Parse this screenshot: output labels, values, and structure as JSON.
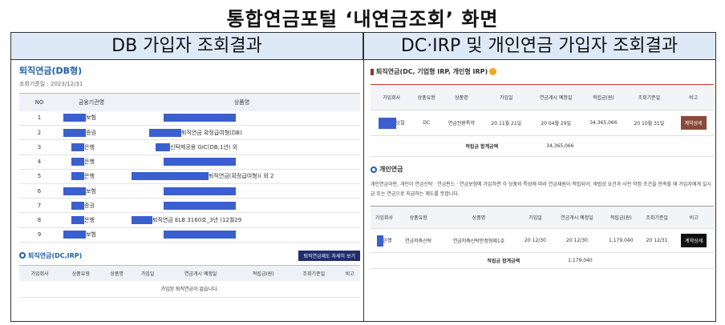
{
  "page_title": "통합연금포털 ‘내연금조회’ 화면",
  "left": {
    "header": "DB 가입자 조회결과",
    "section_title": "퇴직연금(DB형)",
    "base_date": "조회기준일 : 2023/12/31",
    "columns": [
      "NO",
      "금융기관명",
      "상품명"
    ],
    "rows": [
      {
        "no": "1",
        "inst": "보험",
        "prod": ""
      },
      {
        "no": "2",
        "inst": "증권",
        "prod": "퇴직연금 확정급여형(DB)"
      },
      {
        "no": "3",
        "inst": "은행",
        "prod": "신탁제공용 GIC(DB,1년) 외"
      },
      {
        "no": "4",
        "inst": "은행",
        "prod": ""
      },
      {
        "no": "5",
        "inst": "은행",
        "prod": "퇴직연금(확정급여형)( 외 2"
      },
      {
        "no": "6",
        "inst": "보험",
        "prod": ""
      },
      {
        "no": "7",
        "inst": "증권",
        "prod": ""
      },
      {
        "no": "8",
        "inst": "은행",
        "prod": "퇴직연금 ELB 3160호_3년 (12월29"
      },
      {
        "no": "9",
        "inst": "보험",
        "prod": ""
      }
    ],
    "dc_section_title": "퇴직연금(DC,IRP)",
    "dc_button": "퇴직연금제도 자세히 보기",
    "dc_columns": [
      "가입회사",
      "상품유형",
      "상품명",
      "가입일",
      "연금개시 예정일",
      "적립금(원)",
      "조회기준일",
      "비고"
    ],
    "dc_empty": "가입된 퇴직연금이 없습니다."
  },
  "right": {
    "header": "DC·IRP 및 개인연금 가입자 조회결과",
    "section1_title": "퇴직연금(DC, 기업형 IRP, 개인형 IRP)",
    "columns": [
      "가입회사",
      "상품유형",
      "상품명",
      "가입일",
      "연금개시 예정일",
      "적립금(원)",
      "조회기준일",
      "비고"
    ],
    "row1": {
      "company": "보험",
      "type": "DC",
      "product": "연금전환특약",
      "join": "20 11월 21일",
      "start": "20 04월 29일",
      "amount": "34,365,066",
      "base": "20 10월 31일",
      "action": "계약상세"
    },
    "sum_label": "적립금 합계금액",
    "sum_value": "34,365,066",
    "section2_title": "개인연금",
    "description": "개인연금이란, 개인이 연금신탁 · 연금펀드 · 연금보험에 가입하면 각 상품의 특성에 따라 연금재원이 적립되어, 세법상 요건과 사전 약정 조건을 만족할 때 가입자에게 일시금 또는 연금으로 지급하는 제도를 뜻합니다.",
    "row2": {
      "company": "은행",
      "type": "연금저축신탁",
      "product": "연금저축신탁안정형제1호",
      "join": "20 12/30",
      "start": "20 12/30",
      "amount": "1,179,040",
      "base": "20 12/31",
      "action": "계약상세"
    },
    "sum2_label": "적립금 합계금액",
    "sum2_value": "1,179,040"
  }
}
